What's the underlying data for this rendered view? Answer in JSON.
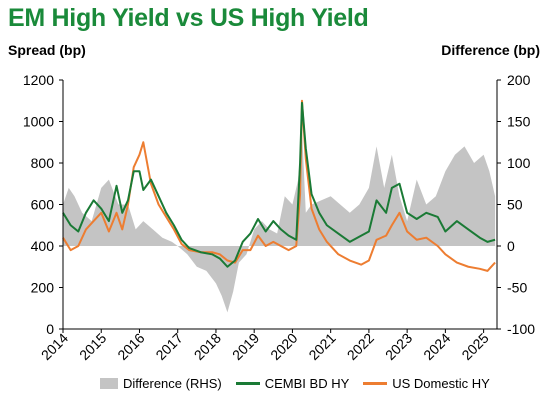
{
  "title": "EM High Yield vs US High Yield",
  "left_axis_title": "Spread (bp)",
  "right_axis_title": "Difference (bp)",
  "chart_data": {
    "type": "line",
    "title": "EM High Yield vs US High Yield",
    "ylabel": "Spread (bp)",
    "y2label": "Difference (bp)",
    "ylim": [
      0,
      1200
    ],
    "y2lim": [
      -100,
      200
    ],
    "xlim": [
      2014.0,
      2025.35
    ],
    "yticks": [
      0,
      200,
      400,
      600,
      800,
      1000,
      1200
    ],
    "y2ticks": [
      -100,
      -50,
      0,
      50,
      100,
      150,
      200
    ],
    "xticks": [
      "2014",
      "2015",
      "2016",
      "2017",
      "2018",
      "2019",
      "2020",
      "2021",
      "2022",
      "2023",
      "2024",
      "2025"
    ],
    "grid": false,
    "legend_position": "bottom",
    "colors": {
      "difference": "#c4c4c4",
      "cembi": "#1a7a35",
      "us": "#ed7d31"
    },
    "series": [
      {
        "name": "Difference (RHS)",
        "type": "area",
        "axis": "right",
        "x": [
          2014.0,
          2014.15,
          2014.3,
          2014.5,
          2014.75,
          2015.0,
          2015.2,
          2015.45,
          2015.7,
          2015.9,
          2016.1,
          2016.35,
          2016.6,
          2016.85,
          2017.0,
          2017.25,
          2017.5,
          2017.75,
          2018.0,
          2018.15,
          2018.3,
          2018.45,
          2018.6,
          2018.8,
          2019.0,
          2019.2,
          2019.4,
          2019.6,
          2019.8,
          2020.0,
          2020.15,
          2020.25,
          2020.35,
          2020.5,
          2020.75,
          2021.0,
          2021.25,
          2021.5,
          2021.75,
          2022.0,
          2022.2,
          2022.4,
          2022.6,
          2022.8,
          2023.0,
          2023.25,
          2023.5,
          2023.75,
          2024.0,
          2024.25,
          2024.5,
          2024.75,
          2025.0,
          2025.15,
          2025.3
        ],
        "values": [
          50,
          70,
          60,
          40,
          30,
          70,
          80,
          50,
          50,
          20,
          30,
          20,
          10,
          5,
          0,
          -10,
          -25,
          -30,
          -45,
          -60,
          -80,
          -55,
          -20,
          -10,
          20,
          30,
          20,
          15,
          60,
          50,
          80,
          140,
          40,
          50,
          55,
          60,
          50,
          40,
          50,
          70,
          120,
          70,
          110,
          60,
          30,
          80,
          50,
          60,
          90,
          110,
          120,
          100,
          110,
          90,
          60
        ]
      },
      {
        "name": "CEMBI BD HY",
        "axis": "left",
        "x": [
          2014.0,
          2014.2,
          2014.4,
          2014.6,
          2014.8,
          2015.0,
          2015.2,
          2015.4,
          2015.55,
          2015.7,
          2015.85,
          2016.0,
          2016.1,
          2016.3,
          2016.5,
          2016.7,
          2016.9,
          2017.1,
          2017.3,
          2017.6,
          2017.9,
          2018.1,
          2018.3,
          2018.5,
          2018.7,
          2018.9,
          2019.1,
          2019.3,
          2019.5,
          2019.7,
          2019.9,
          2020.1,
          2020.2,
          2020.25,
          2020.35,
          2020.5,
          2020.7,
          2020.9,
          2021.2,
          2021.5,
          2021.8,
          2022.0,
          2022.2,
          2022.45,
          2022.6,
          2022.8,
          2023.0,
          2023.25,
          2023.5,
          2023.8,
          2024.0,
          2024.3,
          2024.6,
          2024.9,
          2025.1,
          2025.3
        ],
        "values": [
          560,
          500,
          470,
          560,
          620,
          580,
          520,
          690,
          560,
          620,
          760,
          760,
          670,
          720,
          640,
          560,
          500,
          430,
          390,
          370,
          360,
          340,
          300,
          330,
          420,
          460,
          530,
          470,
          520,
          480,
          450,
          430,
          800,
          1090,
          870,
          650,
          560,
          500,
          460,
          420,
          450,
          470,
          620,
          560,
          680,
          700,
          560,
          530,
          560,
          540,
          470,
          520,
          480,
          440,
          420,
          430
        ]
      },
      {
        "name": "US Domestic HY",
        "axis": "left",
        "x": [
          2014.0,
          2014.2,
          2014.4,
          2014.6,
          2014.8,
          2015.0,
          2015.2,
          2015.4,
          2015.55,
          2015.7,
          2015.85,
          2016.0,
          2016.1,
          2016.3,
          2016.5,
          2016.7,
          2016.9,
          2017.1,
          2017.3,
          2017.6,
          2017.9,
          2018.1,
          2018.3,
          2018.5,
          2018.7,
          2018.9,
          2019.1,
          2019.3,
          2019.5,
          2019.7,
          2019.9,
          2020.1,
          2020.2,
          2020.25,
          2020.35,
          2020.5,
          2020.7,
          2020.9,
          2021.2,
          2021.5,
          2021.8,
          2022.0,
          2022.2,
          2022.45,
          2022.6,
          2022.8,
          2023.0,
          2023.25,
          2023.5,
          2023.8,
          2024.0,
          2024.3,
          2024.6,
          2024.9,
          2025.1,
          2025.3
        ],
        "values": [
          440,
          380,
          400,
          480,
          520,
          560,
          470,
          560,
          480,
          600,
          780,
          840,
          900,
          700,
          600,
          540,
          480,
          410,
          380,
          370,
          370,
          360,
          330,
          320,
          380,
          380,
          450,
          400,
          420,
          400,
          380,
          400,
          650,
          1100,
          820,
          580,
          480,
          420,
          360,
          330,
          310,
          330,
          430,
          450,
          500,
          560,
          470,
          430,
          440,
          400,
          360,
          320,
          300,
          290,
          280,
          320
        ]
      }
    ]
  },
  "legend": [
    "Difference (RHS)",
    "CEMBI BD HY",
    "US Domestic HY"
  ]
}
